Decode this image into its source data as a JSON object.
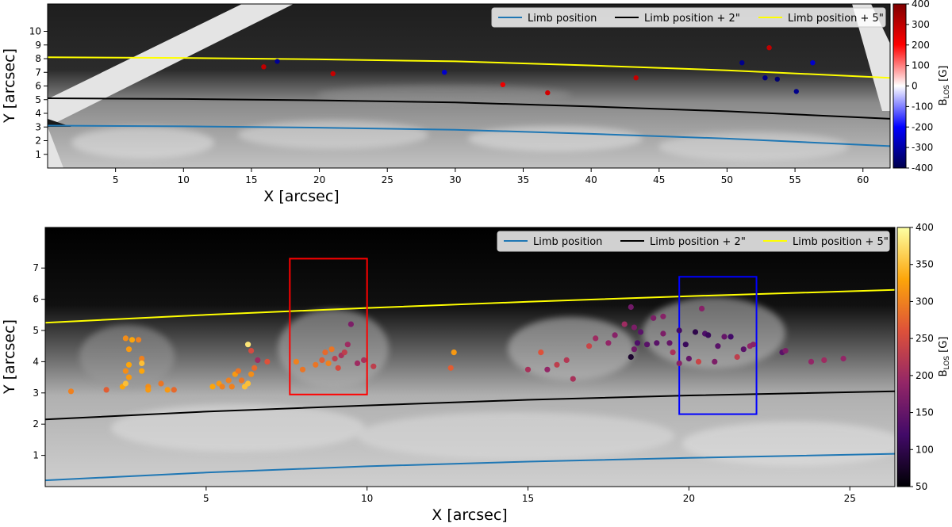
{
  "chart_data": [
    {
      "type": "scatter",
      "panel": "top",
      "xlabel": "X [arcsec]",
      "ylabel": "Y [arcsec]",
      "xlim": [
        0,
        62
      ],
      "ylim": [
        0,
        12
      ],
      "xticks": [
        5,
        10,
        15,
        20,
        25,
        30,
        35,
        40,
        45,
        50,
        55,
        60
      ],
      "yticks": [
        1,
        2,
        3,
        4,
        5,
        6,
        7,
        8,
        9,
        10
      ],
      "background": "grayscale intensity image of the solar limb",
      "legend": {
        "placement": "top-right",
        "entries": [
          {
            "label": "Limb position",
            "color": "#1f77b4"
          },
          {
            "label": "Limb position + 2\"",
            "color": "#000000"
          },
          {
            "label": "Limb position + 5\"",
            "color": "#ffff00"
          }
        ]
      },
      "lines": [
        {
          "label": "Limb position",
          "color": "#1f77b4",
          "x": [
            0,
            10,
            20,
            30,
            40,
            50,
            62
          ],
          "y": [
            3.1,
            3.05,
            2.95,
            2.8,
            2.5,
            2.15,
            1.6
          ]
        },
        {
          "label": "Limb position + 2\"",
          "color": "#000000",
          "x": [
            0,
            10,
            20,
            30,
            40,
            50,
            62
          ],
          "y": [
            5.1,
            5.05,
            4.95,
            4.8,
            4.5,
            4.15,
            3.6
          ]
        },
        {
          "label": "Limb position + 5\"",
          "color": "#ffff00",
          "x": [
            0,
            10,
            20,
            30,
            40,
            50,
            62
          ],
          "y": [
            8.1,
            8.05,
            7.95,
            7.8,
            7.5,
            7.15,
            6.6
          ]
        }
      ],
      "colorbar": {
        "label": "B_LOS [G]",
        "label_main": "B",
        "label_sub": "LOS",
        "label_unit": " [G]",
        "min": -400,
        "max": 400,
        "ticks": [
          400,
          300,
          200,
          100,
          0,
          -100,
          -200,
          -300,
          -400
        ],
        "colormap": "seismic",
        "colors": [
          "#00004c",
          "#0000ff",
          "#ffffff",
          "#ff0000",
          "#7f0000"
        ]
      },
      "points": [
        {
          "x": 15.9,
          "y": 7.4,
          "b": 300
        },
        {
          "x": 16.9,
          "y": 7.8,
          "b": -320
        },
        {
          "x": 21.0,
          "y": 6.9,
          "b": 290
        },
        {
          "x": 29.2,
          "y": 7.0,
          "b": -260
        },
        {
          "x": 33.5,
          "y": 6.1,
          "b": 230
        },
        {
          "x": 36.8,
          "y": 5.5,
          "b": 270
        },
        {
          "x": 43.3,
          "y": 6.6,
          "b": 290
        },
        {
          "x": 51.1,
          "y": 7.7,
          "b": -330
        },
        {
          "x": 52.8,
          "y": 6.6,
          "b": -340
        },
        {
          "x": 53.1,
          "y": 8.8,
          "b": 300
        },
        {
          "x": 53.7,
          "y": 6.5,
          "b": -360
        },
        {
          "x": 55.1,
          "y": 5.6,
          "b": -330
        },
        {
          "x": 56.3,
          "y": 7.7,
          "b": -260
        }
      ]
    },
    {
      "type": "scatter",
      "panel": "bottom",
      "xlabel": "X [arcsec]",
      "ylabel": "Y [arcsec]",
      "xlim": [
        0,
        26.4
      ],
      "ylim": [
        0,
        8.3
      ],
      "xticks": [
        5,
        10,
        15,
        20,
        25
      ],
      "yticks": [
        1,
        2,
        3,
        4,
        5,
        6,
        7
      ],
      "background": "grayscale intensity image of the solar limb",
      "legend": {
        "placement": "top-right",
        "entries": [
          {
            "label": "Limb position",
            "color": "#1f77b4"
          },
          {
            "label": "Limb position + 2\"",
            "color": "#000000"
          },
          {
            "label": "Limb position + 5\"",
            "color": "#ffff00"
          }
        ]
      },
      "lines": [
        {
          "label": "Limb position",
          "color": "#1f77b4",
          "x": [
            0,
            5,
            10,
            15,
            20,
            26.4
          ],
          "y": [
            0.2,
            0.45,
            0.65,
            0.8,
            0.92,
            1.05
          ]
        },
        {
          "label": "Limb position + 2\"",
          "color": "#000000",
          "x": [
            0,
            5,
            10,
            15,
            20,
            26.4
          ],
          "y": [
            2.15,
            2.4,
            2.6,
            2.78,
            2.92,
            3.05
          ]
        },
        {
          "label": "Limb position + 5\"",
          "color": "#ffff00",
          "x": [
            0,
            5,
            10,
            15,
            20,
            26.4
          ],
          "y": [
            5.25,
            5.5,
            5.72,
            5.92,
            6.1,
            6.3
          ]
        }
      ],
      "rectangles": [
        {
          "color": "#ff0000",
          "x0": 7.6,
          "x1": 10.0,
          "y0": 2.95,
          "y1": 7.3
        },
        {
          "color": "#0000ff",
          "x0": 19.7,
          "x1": 22.1,
          "y0": 2.32,
          "y1": 6.72
        }
      ],
      "colorbar": {
        "label": "B_LOS [G]",
        "label_main": "B",
        "label_sub": "LOS",
        "label_unit": " [G]",
        "min": 50,
        "max": 400,
        "ticks": [
          400,
          350,
          300,
          250,
          200,
          150,
          100,
          50
        ],
        "colormap": "inferno",
        "colors": [
          "#000004",
          "#420a68",
          "#932667",
          "#dd513a",
          "#fca50a",
          "#fcffa4"
        ]
      },
      "points": [
        {
          "x": 0.8,
          "y": 3.05,
          "b": 300
        },
        {
          "x": 1.9,
          "y": 3.1,
          "b": 270
        },
        {
          "x": 2.4,
          "y": 3.2,
          "b": 330
        },
        {
          "x": 2.5,
          "y": 3.3,
          "b": 350
        },
        {
          "x": 2.6,
          "y": 3.5,
          "b": 320
        },
        {
          "x": 2.5,
          "y": 3.7,
          "b": 310
        },
        {
          "x": 2.6,
          "y": 3.9,
          "b": 330
        },
        {
          "x": 2.6,
          "y": 4.4,
          "b": 320
        },
        {
          "x": 2.5,
          "y": 4.75,
          "b": 310
        },
        {
          "x": 2.7,
          "y": 4.7,
          "b": 330
        },
        {
          "x": 2.9,
          "y": 4.7,
          "b": 300
        },
        {
          "x": 3.0,
          "y": 4.1,
          "b": 300
        },
        {
          "x": 3.0,
          "y": 3.95,
          "b": 350
        },
        {
          "x": 3.2,
          "y": 3.2,
          "b": 310
        },
        {
          "x": 3.2,
          "y": 3.1,
          "b": 320
        },
        {
          "x": 3.0,
          "y": 3.7,
          "b": 330
        },
        {
          "x": 3.6,
          "y": 3.3,
          "b": 290
        },
        {
          "x": 3.8,
          "y": 3.1,
          "b": 320
        },
        {
          "x": 4.0,
          "y": 3.1,
          "b": 280
        },
        {
          "x": 5.2,
          "y": 3.2,
          "b": 330
        },
        {
          "x": 5.4,
          "y": 3.3,
          "b": 320
        },
        {
          "x": 5.5,
          "y": 3.2,
          "b": 300
        },
        {
          "x": 5.7,
          "y": 3.4,
          "b": 300
        },
        {
          "x": 5.8,
          "y": 3.2,
          "b": 300
        },
        {
          "x": 5.9,
          "y": 3.6,
          "b": 320
        },
        {
          "x": 6.0,
          "y": 3.7,
          "b": 290
        },
        {
          "x": 6.1,
          "y": 3.4,
          "b": 290
        },
        {
          "x": 6.2,
          "y": 3.2,
          "b": 350
        },
        {
          "x": 6.3,
          "y": 3.3,
          "b": 350
        },
        {
          "x": 6.4,
          "y": 3.6,
          "b": 310
        },
        {
          "x": 6.3,
          "y": 4.55,
          "b": 380
        },
        {
          "x": 6.4,
          "y": 4.35,
          "b": 250
        },
        {
          "x": 6.5,
          "y": 3.8,
          "b": 280
        },
        {
          "x": 6.6,
          "y": 4.05,
          "b": 200
        },
        {
          "x": 6.9,
          "y": 4.0,
          "b": 260
        },
        {
          "x": 7.8,
          "y": 4.0,
          "b": 300
        },
        {
          "x": 8.0,
          "y": 3.75,
          "b": 290
        },
        {
          "x": 8.4,
          "y": 3.9,
          "b": 290
        },
        {
          "x": 8.6,
          "y": 4.05,
          "b": 270
        },
        {
          "x": 8.8,
          "y": 3.95,
          "b": 300
        },
        {
          "x": 8.7,
          "y": 4.3,
          "b": 280
        },
        {
          "x": 8.9,
          "y": 4.4,
          "b": 290
        },
        {
          "x": 9.0,
          "y": 4.1,
          "b": 230
        },
        {
          "x": 9.1,
          "y": 3.8,
          "b": 250
        },
        {
          "x": 9.2,
          "y": 4.2,
          "b": 210
        },
        {
          "x": 9.3,
          "y": 4.3,
          "b": 230
        },
        {
          "x": 9.4,
          "y": 4.55,
          "b": 200
        },
        {
          "x": 9.5,
          "y": 5.2,
          "b": 170
        },
        {
          "x": 9.7,
          "y": 3.95,
          "b": 200
        },
        {
          "x": 9.9,
          "y": 4.05,
          "b": 210
        },
        {
          "x": 10.2,
          "y": 3.85,
          "b": 230
        },
        {
          "x": 12.7,
          "y": 4.3,
          "b": 320
        },
        {
          "x": 12.6,
          "y": 3.8,
          "b": 270
        },
        {
          "x": 15.0,
          "y": 3.75,
          "b": 210
        },
        {
          "x": 15.4,
          "y": 4.3,
          "b": 260
        },
        {
          "x": 15.6,
          "y": 3.75,
          "b": 190
        },
        {
          "x": 15.9,
          "y": 3.9,
          "b": 230
        },
        {
          "x": 16.2,
          "y": 4.05,
          "b": 220
        },
        {
          "x": 16.4,
          "y": 3.45,
          "b": 210
        },
        {
          "x": 16.9,
          "y": 4.5,
          "b": 240
        },
        {
          "x": 17.1,
          "y": 4.75,
          "b": 200
        },
        {
          "x": 17.5,
          "y": 4.6,
          "b": 190
        },
        {
          "x": 17.7,
          "y": 4.85,
          "b": 180
        },
        {
          "x": 18.0,
          "y": 5.2,
          "b": 200
        },
        {
          "x": 18.2,
          "y": 5.75,
          "b": 160
        },
        {
          "x": 18.3,
          "y": 5.1,
          "b": 170
        },
        {
          "x": 18.4,
          "y": 4.6,
          "b": 130
        },
        {
          "x": 18.5,
          "y": 4.95,
          "b": 140
        },
        {
          "x": 18.7,
          "y": 4.55,
          "b": 140
        },
        {
          "x": 18.9,
          "y": 5.4,
          "b": 170
        },
        {
          "x": 19.0,
          "y": 4.6,
          "b": 140
        },
        {
          "x": 19.2,
          "y": 5.45,
          "b": 180
        },
        {
          "x": 19.4,
          "y": 4.6,
          "b": 150
        },
        {
          "x": 18.2,
          "y": 4.15,
          "b": 80
        },
        {
          "x": 18.3,
          "y": 4.4,
          "b": 160
        },
        {
          "x": 19.2,
          "y": 4.9,
          "b": 170
        },
        {
          "x": 19.5,
          "y": 4.3,
          "b": 210
        },
        {
          "x": 19.7,
          "y": 3.95,
          "b": 180
        },
        {
          "x": 19.7,
          "y": 5.0,
          "b": 120
        },
        {
          "x": 19.9,
          "y": 4.55,
          "b": 110
        },
        {
          "x": 20.0,
          "y": 4.1,
          "b": 150
        },
        {
          "x": 20.2,
          "y": 4.95,
          "b": 100
        },
        {
          "x": 20.3,
          "y": 4.0,
          "b": 240
        },
        {
          "x": 20.4,
          "y": 5.7,
          "b": 180
        },
        {
          "x": 20.5,
          "y": 4.9,
          "b": 130
        },
        {
          "x": 20.6,
          "y": 4.85,
          "b": 110
        },
        {
          "x": 20.8,
          "y": 4.0,
          "b": 170
        },
        {
          "x": 20.9,
          "y": 4.5,
          "b": 140
        },
        {
          "x": 21.1,
          "y": 4.8,
          "b": 150
        },
        {
          "x": 21.3,
          "y": 4.8,
          "b": 120
        },
        {
          "x": 21.5,
          "y": 4.15,
          "b": 230
        },
        {
          "x": 21.7,
          "y": 4.4,
          "b": 140
        },
        {
          "x": 21.9,
          "y": 4.5,
          "b": 190
        },
        {
          "x": 22.0,
          "y": 4.55,
          "b": 180
        },
        {
          "x": 22.9,
          "y": 4.3,
          "b": 140
        },
        {
          "x": 23.0,
          "y": 4.35,
          "b": 170
        },
        {
          "x": 23.8,
          "y": 4.0,
          "b": 190
        },
        {
          "x": 24.2,
          "y": 4.05,
          "b": 200
        },
        {
          "x": 24.8,
          "y": 4.1,
          "b": 190
        }
      ]
    }
  ]
}
